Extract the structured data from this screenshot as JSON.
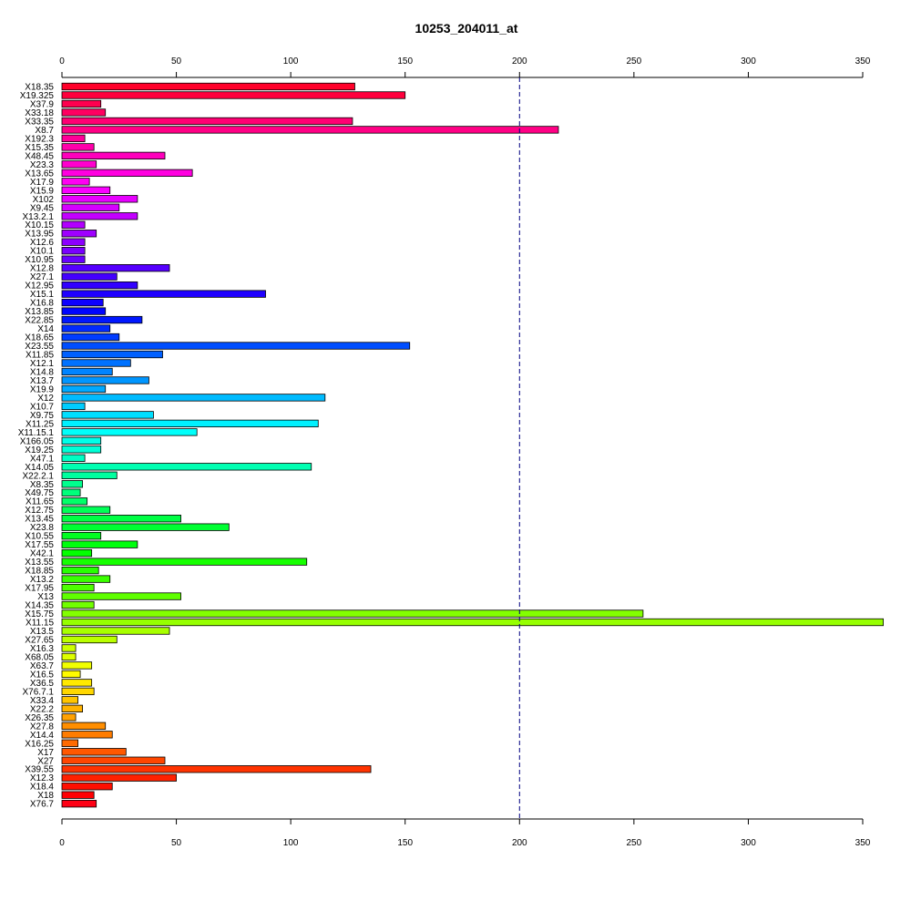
{
  "chart_data": {
    "type": "bar",
    "orientation": "horizontal",
    "title": "10253_204011_at",
    "xlabel": "",
    "ylabel": "",
    "xlim": [
      0,
      350
    ],
    "xticks": [
      0,
      50,
      100,
      150,
      200,
      250,
      300,
      350
    ],
    "reference_line": {
      "value": 200,
      "style": "dashed",
      "color": "#000080"
    },
    "grid": false,
    "legend": "none",
    "categories": [
      "X18.35",
      "X19.325",
      "X37.9",
      "X33.18",
      "X33.35",
      "X8.7",
      "X192.3",
      "X15.35",
      "X48.45",
      "X23.3",
      "X13.65",
      "X17.9",
      "X15.9",
      "X102",
      "X9.45",
      "X13.2.1",
      "X10.15",
      "X13.95",
      "X12.6",
      "X10.1",
      "X10.95",
      "X12.8",
      "X27.1",
      "X12.95",
      "X15.1",
      "X16.8",
      "X13.85",
      "X22.85",
      "X14",
      "X18.65",
      "X23.55",
      "X11.85",
      "X12.1",
      "X14.8",
      "X13.7",
      "X19.9",
      "X12",
      "X10.7",
      "X9.75",
      "X11.25",
      "X11.15.1",
      "X166.05",
      "X19.25",
      "X47.1",
      "X14.05",
      "X22.2.1",
      "X8.35",
      "X49.75",
      "X11.65",
      "X12.75",
      "X13.45",
      "X23.8",
      "X10.55",
      "X17.55",
      "X42.1",
      "X13.55",
      "X18.85",
      "X13.2",
      "X17.95",
      "X13",
      "X14.35",
      "X15.75",
      "X11.15",
      "X13.5",
      "X27.65",
      "X16.3",
      "X68.05",
      "X63.7",
      "X16.5",
      "X36.5",
      "X76.7.1",
      "X33.4",
      "X22.2",
      "X26.35",
      "X27.8",
      "X14.4",
      "X16.25",
      "X17",
      "X27",
      "X39.55",
      "X12.3",
      "X18.4",
      "X18",
      "X76.7"
    ],
    "values": [
      128,
      150,
      17,
      19,
      127,
      217,
      10,
      14,
      45,
      15,
      57,
      12,
      21,
      33,
      25,
      33,
      10,
      15,
      10,
      10,
      10,
      47,
      24,
      33,
      89,
      18,
      19,
      35,
      21,
      25,
      152,
      44,
      30,
      22,
      38,
      19,
      115,
      10,
      40,
      112,
      59,
      17,
      17,
      10,
      109,
      24,
      9,
      8,
      11,
      21,
      52,
      73,
      17,
      33,
      13,
      107,
      16,
      21,
      14,
      52,
      14,
      254,
      359,
      47,
      24,
      6,
      6,
      13,
      8,
      13,
      14,
      7,
      9,
      6,
      19,
      22,
      7,
      28,
      45,
      135,
      50,
      22,
      14,
      15
    ]
  }
}
